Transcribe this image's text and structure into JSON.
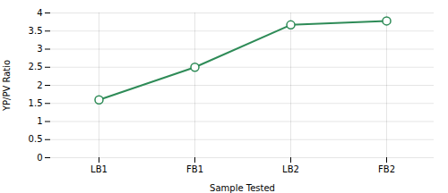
{
  "chart_data": {
    "type": "line",
    "xlabel": "Sample Tested",
    "ylabel": "YP/PV Ratio",
    "categories": [
      "LB1",
      "FB1",
      "LB2",
      "FB2"
    ],
    "values": [
      1.6,
      2.5,
      3.67,
      3.78
    ],
    "color": "#2E8B57",
    "marker": "circle",
    "ylim": [
      0,
      4
    ],
    "yticks": [
      0,
      0.5,
      1,
      1.5,
      2,
      2.5,
      3,
      3.5,
      4
    ],
    "grid": true
  }
}
